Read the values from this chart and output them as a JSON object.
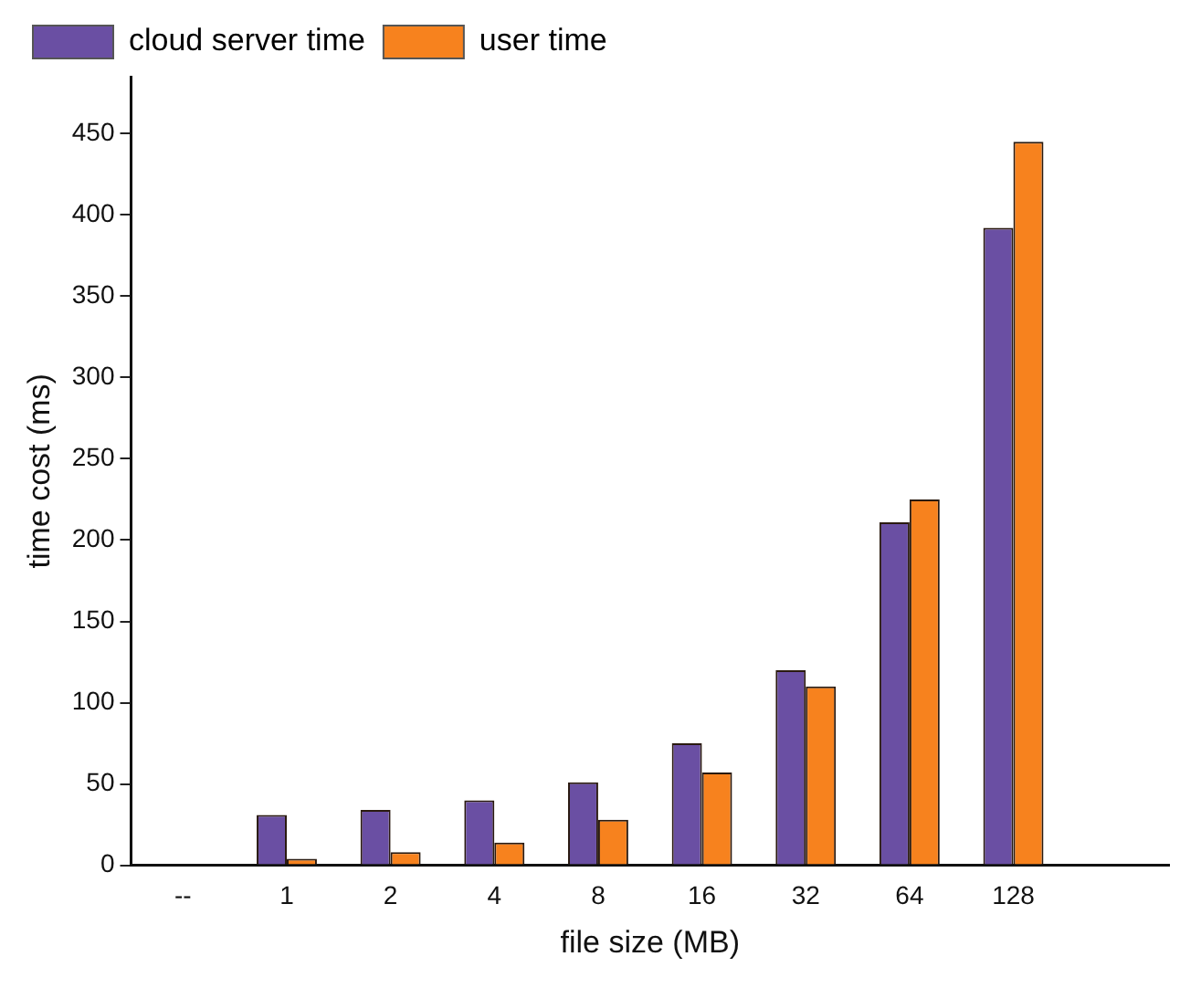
{
  "chart_data": {
    "type": "bar",
    "xlabel": "file size (MB)",
    "ylabel": "time cost (ms)",
    "categories": [
      "--",
      "1",
      "2",
      "4",
      "8",
      "16",
      "32",
      "64",
      "128",
      null
    ],
    "series": [
      {
        "name": "cloud server time",
        "color": "#6a4fa3",
        "values": [
          null,
          31,
          34,
          40,
          51,
          75,
          120,
          211,
          392,
          null
        ]
      },
      {
        "name": "user time",
        "color": "#f7821e",
        "values": [
          null,
          4,
          8,
          14,
          28,
          57,
          110,
          225,
          445,
          null
        ]
      }
    ],
    "ylim": [
      0,
      485
    ],
    "yticks": [
      0,
      50,
      100,
      150,
      200,
      250,
      300,
      350,
      400,
      450
    ],
    "grid": false,
    "legend": "top left"
  }
}
